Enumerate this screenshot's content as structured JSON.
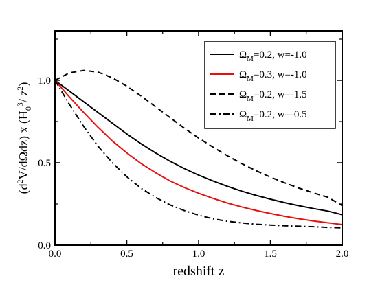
{
  "chart_data": {
    "type": "line",
    "xlabel": "redshift z",
    "ylabel": {
      "prefix": "(d",
      "sup1": "2",
      "mid1": "V/dΩdz) x (H",
      "sub1": "0",
      "sup2": "3",
      "mid2": "/ z",
      "sup3": "2",
      "suffix": ")"
    },
    "xlim": [
      0,
      2.0
    ],
    "ylim": [
      0,
      1.3
    ],
    "x_ticks": [
      "0.0",
      "0.5",
      "1.0",
      "1.5",
      "2.0"
    ],
    "y_ticks": [
      "0.0",
      "0.5",
      "1.0"
    ],
    "x_tick_values": [
      0,
      0.5,
      1.0,
      1.5,
      2.0
    ],
    "y_tick_values": [
      0,
      0.5,
      1.0
    ],
    "legend_position": "top-right",
    "x": [
      0.0,
      0.1,
      0.2,
      0.3,
      0.4,
      0.5,
      0.6,
      0.7,
      0.8,
      0.9,
      1.0,
      1.1,
      1.2,
      1.3,
      1.4,
      1.5,
      1.6,
      1.7,
      1.8,
      1.9,
      2.0
    ],
    "series": [
      {
        "label": {
          "omega": "Ω",
          "sub": "M",
          "text": "=0.2, w=-1.0"
        },
        "color": "#000000",
        "dash": "solid",
        "values": [
          1.0,
          0.935,
          0.87,
          0.805,
          0.74,
          0.675,
          0.615,
          0.56,
          0.51,
          0.465,
          0.425,
          0.39,
          0.357,
          0.328,
          0.302,
          0.279,
          0.258,
          0.239,
          0.222,
          0.207,
          0.185
        ]
      },
      {
        "label": {
          "omega": "Ω",
          "sub": "M",
          "text": "=0.3, w=-1.0"
        },
        "color": "#e8100c",
        "dash": "solid",
        "values": [
          1.0,
          0.9,
          0.805,
          0.715,
          0.632,
          0.56,
          0.495,
          0.44,
          0.39,
          0.35,
          0.315,
          0.284,
          0.256,
          0.232,
          0.211,
          0.192,
          0.175,
          0.16,
          0.147,
          0.136,
          0.125
        ]
      },
      {
        "label": {
          "omega": "Ω",
          "sub": "M",
          "text": "=0.2, w=-1.5"
        },
        "color": "#000000",
        "dash": "dashed",
        "values": [
          1.0,
          1.045,
          1.06,
          1.05,
          1.015,
          0.965,
          0.905,
          0.84,
          0.775,
          0.71,
          0.65,
          0.595,
          0.543,
          0.495,
          0.452,
          0.413,
          0.378,
          0.346,
          0.317,
          0.291,
          0.24
        ]
      },
      {
        "label": {
          "omega": "Ω",
          "sub": "M",
          "text": "=0.2, w=-0.5"
        },
        "color": "#000000",
        "dash": "dashdot",
        "values": [
          1.0,
          0.855,
          0.72,
          0.6,
          0.5,
          0.415,
          0.345,
          0.29,
          0.245,
          0.21,
          0.182,
          0.16,
          0.145,
          0.135,
          0.127,
          0.122,
          0.118,
          0.115,
          0.112,
          0.108,
          0.105
        ]
      }
    ]
  }
}
